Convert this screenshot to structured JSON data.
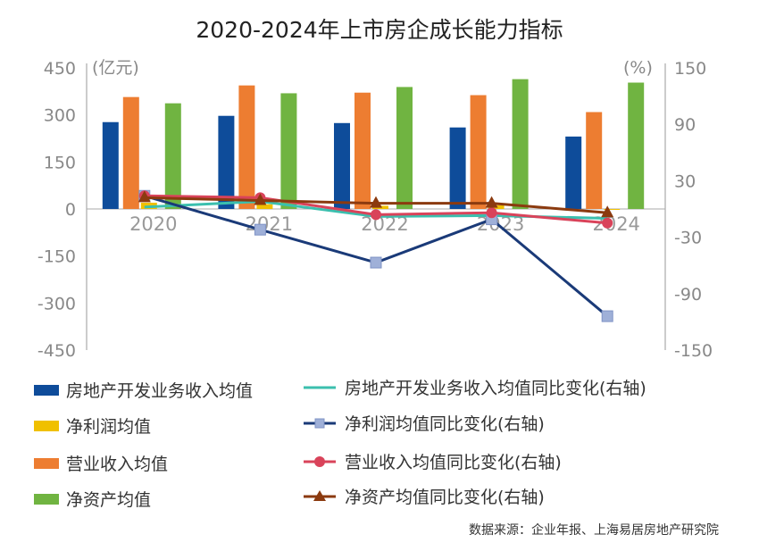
{
  "chart_data": {
    "type": "bar+line",
    "title": "2020-2024年上市房企成长能力指标",
    "left_unit": "(亿元)",
    "right_unit": "(%)",
    "categories": [
      "2020",
      "2021",
      "2022",
      "2023",
      "2024"
    ],
    "ylim_left": [
      -450,
      450
    ],
    "yticks_left": [
      "450",
      "300",
      "150",
      "0",
      "-150",
      "-300",
      "-450"
    ],
    "ylim_right": [
      -150,
      150
    ],
    "yticks_right": [
      "150",
      "90",
      "30",
      "-30",
      "-90",
      "-150"
    ],
    "bar_series": [
      {
        "name": "房地产开发业务收入均值",
        "color": "#0e4c9a",
        "values": [
          277,
          297,
          274,
          260,
          231
        ]
      },
      {
        "name": "净利润均值",
        "color": "#f0c000",
        "values": [
          20,
          15,
          10,
          12,
          -2
        ]
      },
      {
        "name": "营业收入均值",
        "color": "#ed7d31",
        "values": [
          357,
          394,
          371,
          363,
          309
        ]
      },
      {
        "name": "净资产均值",
        "color": "#70b441",
        "values": [
          337,
          369,
          389,
          414,
          403
        ]
      }
    ],
    "line_series": [
      {
        "name": "房地产开发业务收入均值同比变化(右轴)",
        "color": "#3bbfae",
        "marker": "none",
        "values": [
          2,
          8,
          -8,
          -7,
          -10
        ]
      },
      {
        "name": "净利润均值同比变化(右轴)",
        "color": "#1a3a78",
        "marker": "square",
        "values": [
          14,
          -22,
          -57,
          -11,
          -114
        ]
      },
      {
        "name": "营业收入均值同比变化(右轴)",
        "color": "#d9435a",
        "marker": "circle",
        "values": [
          14,
          12,
          -6,
          -4,
          -15
        ]
      },
      {
        "name": "净资产均值同比变化(右轴)",
        "color": "#8b3a0f",
        "marker": "triangle",
        "values": [
          12,
          9,
          6,
          6,
          -4
        ]
      }
    ],
    "grid": false,
    "legend": "bottom"
  },
  "source": "数据来源：企业年报、上海易居房地产研究院"
}
